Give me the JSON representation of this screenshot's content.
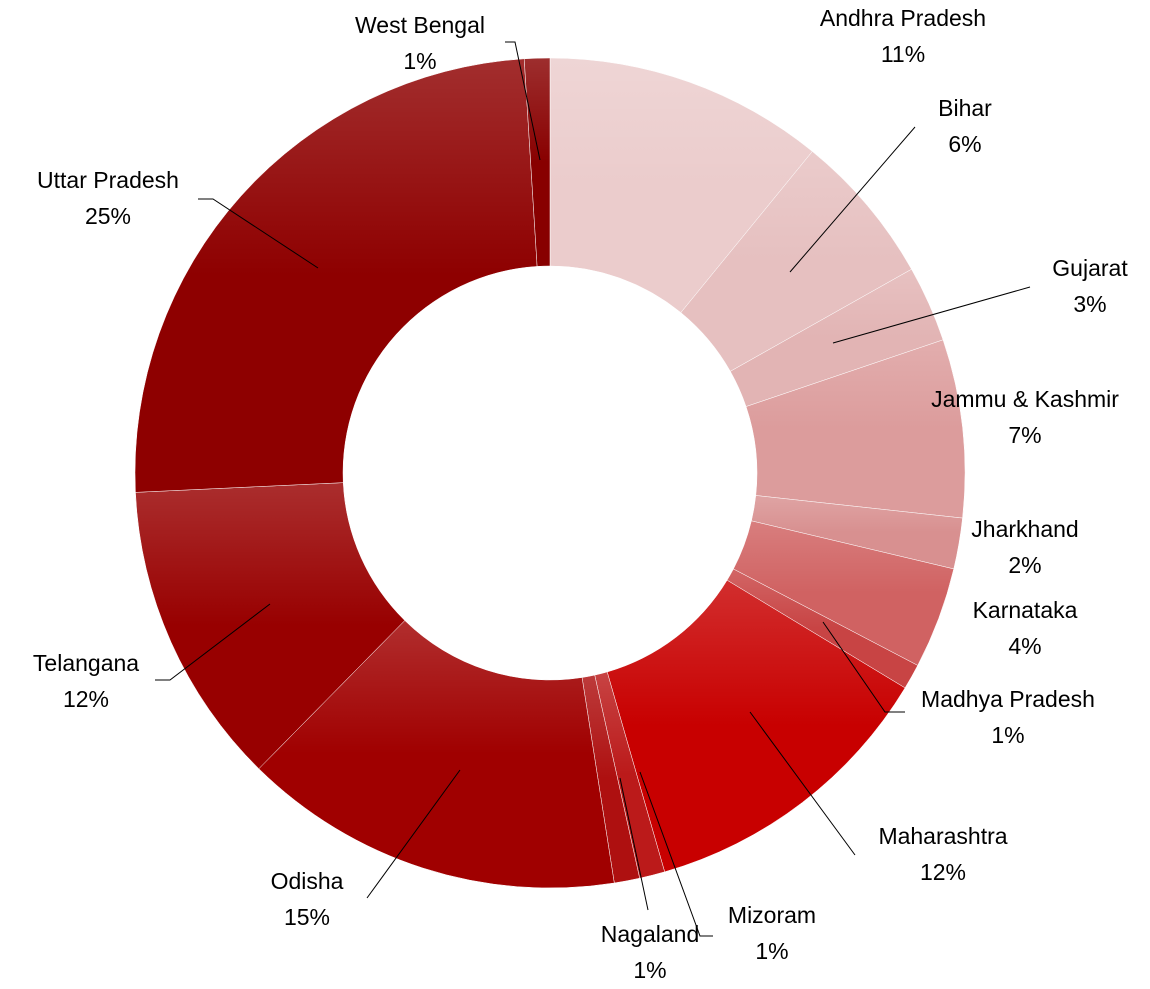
{
  "chart_data": {
    "type": "donut",
    "categories": [
      "Andhra Pradesh",
      "Bihar",
      "Gujarat",
      "Jammu & Kashmir",
      "Jharkhand",
      "Karnataka",
      "Madhya Pradesh",
      "Maharashtra",
      "Mizoram",
      "Nagaland",
      "Odisha",
      "Telangana",
      "Uttar Pradesh",
      "West Bengal"
    ],
    "values": [
      11,
      6,
      3,
      7,
      2,
      4,
      1,
      12,
      1,
      1,
      15,
      12,
      25,
      1
    ],
    "value_labels": [
      "11%",
      "6%",
      "3%",
      "7%",
      "2%",
      "4%",
      "1%",
      "12%",
      "1%",
      "1%",
      "15%",
      "12%",
      "25%",
      "1%"
    ],
    "colors": [
      "#ebcccc",
      "#e6c0c0",
      "#e2b4b4",
      "#dc9c9c",
      "#d89090",
      "#d06262",
      "#c84444",
      "#c80000",
      "#bb1a1a",
      "#ae1010",
      "#a00000",
      "#980000",
      "#8e0000",
      "#880000"
    ]
  }
}
